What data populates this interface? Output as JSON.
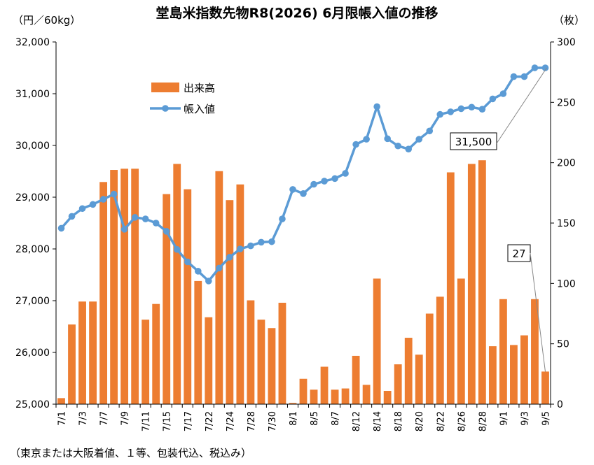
{
  "title": "堂島米指数先物R8(2026) 6月限帳入値の推移",
  "unit_left": "（円／60kg）",
  "unit_right": "（枚）",
  "footnote": "（東京または大阪着値、１等、包装代込、税込み）",
  "chart_data": {
    "type": "bar+line",
    "categories": [
      "7/1",
      "7/2",
      "7/3",
      "7/4",
      "7/7",
      "7/8",
      "7/9",
      "7/10",
      "7/11",
      "7/14",
      "7/15",
      "7/16",
      "7/17",
      "7/18",
      "7/22",
      "7/23",
      "7/24",
      "7/25",
      "7/28",
      "7/29",
      "7/30",
      "7/31",
      "8/1",
      "8/4",
      "8/5",
      "8/6",
      "8/7",
      "8/8",
      "8/12",
      "8/13",
      "8/14",
      "8/15",
      "8/18",
      "8/19",
      "8/20",
      "8/21",
      "8/22",
      "8/25",
      "8/26",
      "8/27",
      "8/28",
      "8/29",
      "9/1",
      "9/2",
      "9/3",
      "9/4",
      "9/5"
    ],
    "x_tick_labels": [
      "7/1",
      "7/3",
      "7/7",
      "7/9",
      "7/11",
      "7/15",
      "7/17",
      "7/22",
      "7/24",
      "7/28",
      "7/30",
      "8/1",
      "8/5",
      "8/7",
      "8/12",
      "8/14",
      "8/18",
      "8/20",
      "8/22",
      "8/26",
      "8/28",
      "9/1",
      "9/3",
      "9/5"
    ],
    "series": [
      {
        "name": "出来高",
        "type": "bar",
        "axis": "right",
        "color": "#ED7D31",
        "values": [
          5,
          66,
          85,
          85,
          184,
          194,
          195,
          195,
          70,
          83,
          174,
          199,
          178,
          102,
          72,
          193,
          169,
          182,
          86,
          70,
          63,
          84,
          1,
          21,
          12,
          31,
          12,
          13,
          40,
          16,
          104,
          11,
          33,
          55,
          41,
          75,
          89,
          192,
          104,
          199,
          202,
          48,
          87,
          49,
          57,
          87,
          27
        ]
      },
      {
        "name": "帳入値",
        "type": "line",
        "axis": "left",
        "color": "#5B9BD5",
        "values": [
          28400,
          28630,
          28780,
          28860,
          28960,
          29060,
          28380,
          28610,
          28580,
          28500,
          28340,
          27990,
          27750,
          27570,
          27380,
          27630,
          27840,
          28000,
          28060,
          28130,
          28140,
          28580,
          29150,
          29070,
          29250,
          29310,
          29360,
          29460,
          30020,
          30120,
          30750,
          30130,
          29990,
          29930,
          30120,
          30280,
          30600,
          30650,
          30710,
          30740,
          30700,
          30900,
          31000,
          31330,
          31330,
          31500,
          31500
        ]
      }
    ],
    "y_left": {
      "ylim": [
        25000,
        32000
      ],
      "ticks": [
        "25,000",
        "26,000",
        "27,000",
        "28,000",
        "29,000",
        "30,000",
        "31,000",
        "32,000"
      ]
    },
    "y_right": {
      "ylim": [
        0,
        300
      ],
      "ticks": [
        "0",
        "50",
        "100",
        "150",
        "200",
        "250",
        "300"
      ]
    },
    "annotations": [
      {
        "text": "31,500",
        "target_series": "帳入値",
        "target_category": "9/5"
      },
      {
        "text": "27",
        "target_series": "出来高",
        "target_category": "9/5"
      }
    ],
    "legend": {
      "placement": "upper-left inside plot",
      "entries": [
        "出来高",
        "帳入値"
      ]
    },
    "grid": false
  }
}
